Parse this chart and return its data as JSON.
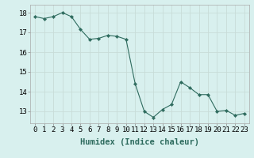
{
  "x": [
    0,
    1,
    2,
    3,
    4,
    5,
    6,
    7,
    8,
    9,
    10,
    11,
    12,
    13,
    14,
    15,
    16,
    17,
    18,
    19,
    20,
    21,
    22,
    23
  ],
  "y": [
    17.8,
    17.7,
    17.8,
    18.0,
    17.8,
    17.15,
    16.65,
    16.7,
    16.85,
    16.8,
    16.65,
    14.4,
    13.0,
    12.7,
    13.1,
    13.35,
    14.5,
    14.2,
    13.85,
    13.85,
    13.0,
    13.05,
    12.8,
    12.9
  ],
  "line_color": "#2e6b5e",
  "marker": "D",
  "marker_size": 2.2,
  "bg_color": "#d8f0ee",
  "grid_color": "#c8dcd8",
  "xlabel": "Humidex (Indice chaleur)",
  "xlim": [
    -0.5,
    23.5
  ],
  "ylim": [
    12.4,
    18.4
  ],
  "yticks": [
    13,
    14,
    15,
    16,
    17,
    18
  ],
  "xtick_labels": [
    "0",
    "1",
    "2",
    "3",
    "4",
    "5",
    "6",
    "7",
    "8",
    "9",
    "10",
    "11",
    "12",
    "13",
    "14",
    "15",
    "16",
    "17",
    "18",
    "19",
    "20",
    "21",
    "22",
    "23"
  ],
  "xlabel_fontsize": 7.5,
  "tick_fontsize": 6.5
}
